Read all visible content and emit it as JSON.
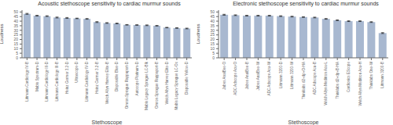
{
  "chart_data": [
    {
      "type": "bar",
      "title": "Acoustic stethoscope sensitivity to cardiac murmur sounds",
      "xlabel": "Stethoscope",
      "ylabel": "Loudness",
      "color": "#a8b8d0",
      "categories": [
        "Littmann Cardiology IV-B",
        "Mabis Spectrum-D",
        "Littmann Cardiology III-D",
        "Littmann Cardiology III-B",
        "Heinz Germer 3.2-D",
        "Ultrascope-D",
        "Littmann Cardiology IV-D",
        "Heinz Germer 3.2-B",
        "Welch Allyn Harvey Elite-B",
        "Disposable Blue-D",
        "Omron Sprague Rappaport-D",
        "Autocope Platinum-D",
        "Mabis Legacy Sprague LC-Blk",
        "Omron Sprague Rappaport-B",
        "Welch Allyn Harvey Elite-D",
        "Mabis Legacy Sprague LC-Ox",
        "Disposable Yellow-D"
      ],
      "values": [
        48,
        46,
        45.5,
        44,
        43.5,
        43,
        42.5,
        39,
        38,
        37.5,
        36,
        35.8,
        35.5,
        35,
        33,
        32.5,
        32
      ],
      "errors": [
        0.5,
        0.4,
        0.4,
        0.5,
        0.5,
        0.3,
        0.4,
        0.5,
        0.4,
        0.4,
        0.3,
        0.3,
        0.4,
        0.3,
        0.3,
        0.3,
        0.4
      ],
      "ylim": [
        0,
        52
      ],
      "yticks": [
        0,
        5,
        10,
        15,
        20,
        25,
        30,
        35,
        40,
        45,
        50
      ]
    },
    {
      "type": "bar",
      "title": "Electronic stethoscope sensitivity to cardiac murmur sounds",
      "xlabel": "Stethoscope",
      "ylabel": "Loudness",
      "color": "#a8b8d0",
      "categories": [
        "Jabes AnalBee-O",
        "ADC Adscope Acu-O",
        "Jabes AnalBee-B",
        "Jabes AnalBee-W",
        "ADC Adscope Acu-W",
        "Littmann 3200-D",
        "Littmann 3200-W",
        "Thinklabs d2+dp+O-HA",
        "ADC Adscope Acu-B",
        "Welch Allyn Meditron Acu-L",
        "Thinklabs d2+dp+B-HA",
        "Cardionics EScope",
        "Welch Allyn Meditron Acu-H",
        "Thinklabs One-W",
        "Littmann 3200-B"
      ],
      "values": [
        47,
        46.5,
        46,
        46,
        46,
        45.5,
        45,
        44.5,
        44,
        42.5,
        41,
        40,
        40,
        39,
        27
      ],
      "errors": [
        0.5,
        0.4,
        0.4,
        0.4,
        0.4,
        0.4,
        0.4,
        0.4,
        0.4,
        0.4,
        0.4,
        0.4,
        0.4,
        0.4,
        0.5
      ],
      "ylim": [
        0,
        52
      ],
      "yticks": [
        0,
        5,
        10,
        15,
        20,
        25,
        30,
        35,
        40,
        45,
        50
      ]
    }
  ]
}
